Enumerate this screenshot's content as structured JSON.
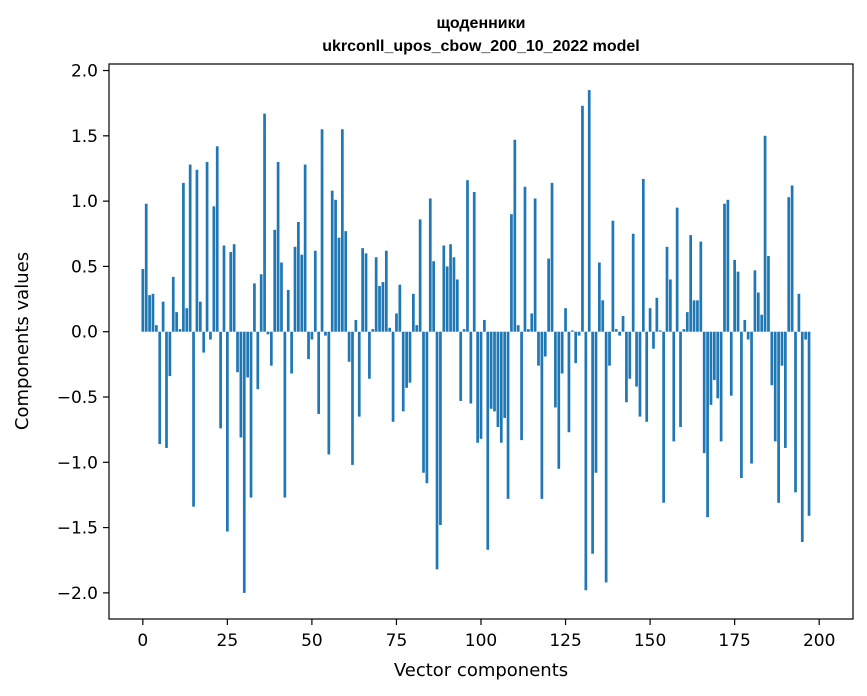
{
  "chart_data": {
    "type": "bar",
    "title": "щоденники",
    "subtitle": "ukrconll_upos_cbow_200_10_2022 model",
    "xlabel": "Vector components",
    "ylabel": "Components values",
    "xlim": [
      -10,
      210
    ],
    "ylim": [
      -2.2,
      2.05
    ],
    "xticks": [
      0,
      25,
      50,
      75,
      100,
      125,
      150,
      175,
      200
    ],
    "yticks": [
      2.0,
      1.5,
      1.0,
      0.5,
      0.0,
      -0.5,
      -1.0,
      -1.5,
      -2.0
    ],
    "xtick_labels": [
      "0",
      "25",
      "50",
      "75",
      "100",
      "125",
      "150",
      "175",
      "200"
    ],
    "ytick_labels": [
      "2.0",
      "1.5",
      "1.0",
      "0.5",
      "0.0",
      "−0.5",
      "−1.0",
      "−1.5",
      "−2.0"
    ],
    "bar_color": "#1f77b4",
    "grid": false,
    "values": [
      0.48,
      0.98,
      0.28,
      0.29,
      0.05,
      -0.86,
      0.23,
      -0.89,
      -0.34,
      0.42,
      0.15,
      0.02,
      1.14,
      0.18,
      1.28,
      -1.34,
      1.24,
      0.23,
      -0.16,
      1.3,
      -0.06,
      0.96,
      1.42,
      -0.74,
      0.66,
      -1.53,
      0.61,
      0.67,
      -0.31,
      -0.81,
      -2.0,
      -0.35,
      -1.27,
      0.37,
      -0.44,
      0.44,
      1.67,
      -0.02,
      -0.26,
      0.78,
      1.3,
      0.53,
      -1.27,
      0.32,
      -0.32,
      0.65,
      0.84,
      0.59,
      1.28,
      -0.21,
      -0.06,
      0.62,
      -0.63,
      1.55,
      -0.03,
      -0.94,
      1.08,
      1.01,
      0.72,
      1.55,
      0.77,
      -0.23,
      -1.02,
      0.09,
      -0.65,
      0.64,
      0.6,
      -0.36,
      0.02,
      0.57,
      0.35,
      0.38,
      0.62,
      0.03,
      -0.69,
      0.14,
      0.36,
      -0.61,
      -0.43,
      -0.39,
      0.29,
      0.05,
      0.86,
      -1.08,
      -1.16,
      1.02,
      0.54,
      -1.82,
      -1.48,
      0.66,
      0.5,
      0.67,
      0.57,
      0.4,
      -0.53,
      0.02,
      1.16,
      -0.55,
      1.07,
      -0.85,
      -0.82,
      0.09,
      -1.67,
      -0.59,
      -0.61,
      -0.73,
      -0.85,
      -0.66,
      -1.28,
      0.9,
      1.47,
      0.05,
      -0.83,
      1.11,
      0.02,
      0.14,
      1.02,
      -0.26,
      -1.28,
      -0.19,
      0.56,
      1.14,
      -0.58,
      -1.05,
      -0.32,
      0.18,
      -0.77,
      0.01,
      -0.24,
      -0.03,
      1.73,
      -1.98,
      1.85,
      -1.7,
      -1.08,
      0.53,
      0.24,
      -1.92,
      -0.26,
      0.85,
      0.02,
      -0.03,
      0.12,
      -0.54,
      -0.36,
      0.75,
      -0.42,
      -0.65,
      1.17,
      -0.69,
      0.18,
      -0.13,
      0.26,
      0.01,
      -1.31,
      0.65,
      0.4,
      -0.84,
      0.95,
      -0.73,
      0.02,
      0.15,
      0.74,
      0.24,
      0.24,
      0.69,
      -0.93,
      -1.42,
      -0.56,
      -0.37,
      -0.51,
      -0.84,
      0.98,
      1.01,
      -0.49,
      0.55,
      0.46,
      -1.12,
      0.09,
      -0.06,
      -1.01,
      0.47,
      0.3,
      0.13,
      1.5,
      0.58,
      -0.41,
      -0.84,
      -1.31,
      -0.26,
      -0.89,
      1.03,
      1.12,
      -1.23,
      0.29,
      -1.61,
      -0.06,
      -1.41
    ]
  }
}
